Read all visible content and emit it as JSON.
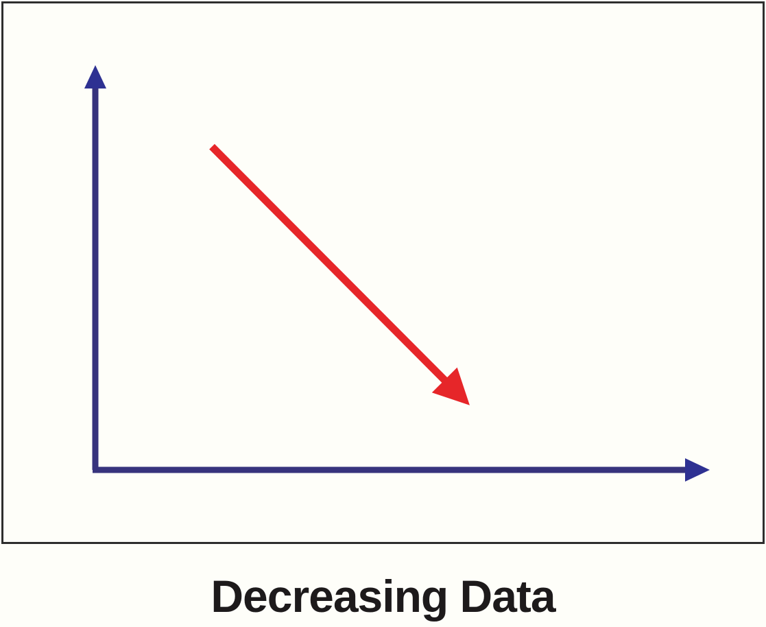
{
  "figure": {
    "caption": "Decreasing Data",
    "colors": {
      "axis": "#37337d",
      "axis_arrowhead": "#2e3192",
      "trend": "#e62629",
      "frame_border": "#2e2e2e",
      "background": "#fefef9",
      "caption_text": "#1d1a1b"
    }
  },
  "chart_data": {
    "type": "line",
    "title": "Decreasing Data",
    "xlabel": "",
    "ylabel": "",
    "x_range": [
      0,
      1
    ],
    "y_range": [
      0,
      1
    ],
    "ticks": false,
    "grid": false,
    "legend": false,
    "series": [
      {
        "name": "decreasing-trend",
        "style": "arrow",
        "color": "#e62629",
        "x": [
          0.19,
          0.61
        ],
        "y": [
          0.8,
          0.16
        ]
      }
    ]
  }
}
